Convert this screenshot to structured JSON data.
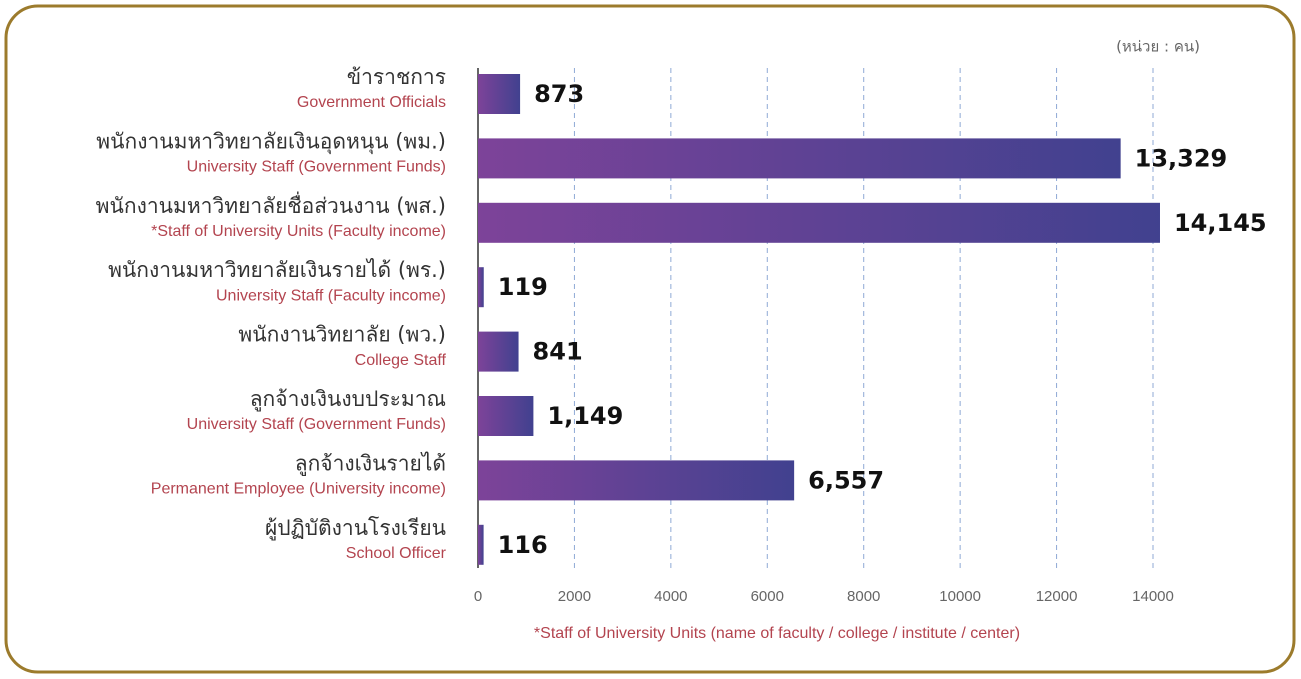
{
  "chart_data": {
    "type": "bar",
    "orientation": "horizontal",
    "unit_note": "(หน่วย : คน)",
    "footnote": "*Staff of University Units (name of faculty / college / institute / center)",
    "categories": [
      "ข้าราชการ",
      "พนักงานมหาวิทยาลัยเงินอุดหนุน (พม.)",
      "พนักงานมหาวิทยาลัยชื่อส่วนงาน (พส.)",
      "พนักงานมหาวิทยาลัยเงินรายได้ (พร.)",
      "พนักงานวิทยาลัย (พว.)",
      "ลูกจ้างเงินงบประมาณ",
      "ลูกจ้างเงินรายได้",
      "ผู้ปฏิบัติงานโรงเรียน"
    ],
    "categories_en": [
      "Government Officials",
      "University Staff (Government Funds)",
      "*Staff of University Units (Faculty income)",
      "University Staff (Faculty income)",
      "College Staff",
      "University Staff (Government Funds)",
      "Permanent Employee (University income)",
      "School Officer"
    ],
    "values": [
      873,
      13329,
      14145,
      119,
      841,
      1149,
      6557,
      116
    ],
    "value_labels": [
      "873",
      "13,329",
      "14,145",
      "119",
      "841",
      "1,149",
      "6,557",
      "116"
    ],
    "gradient_colors": [
      "#7d4399",
      "#41418f"
    ],
    "xlim": [
      0,
      14000
    ],
    "xticks": [
      0,
      2000,
      4000,
      6000,
      8000,
      10000,
      12000,
      14000
    ],
    "grid": true
  }
}
